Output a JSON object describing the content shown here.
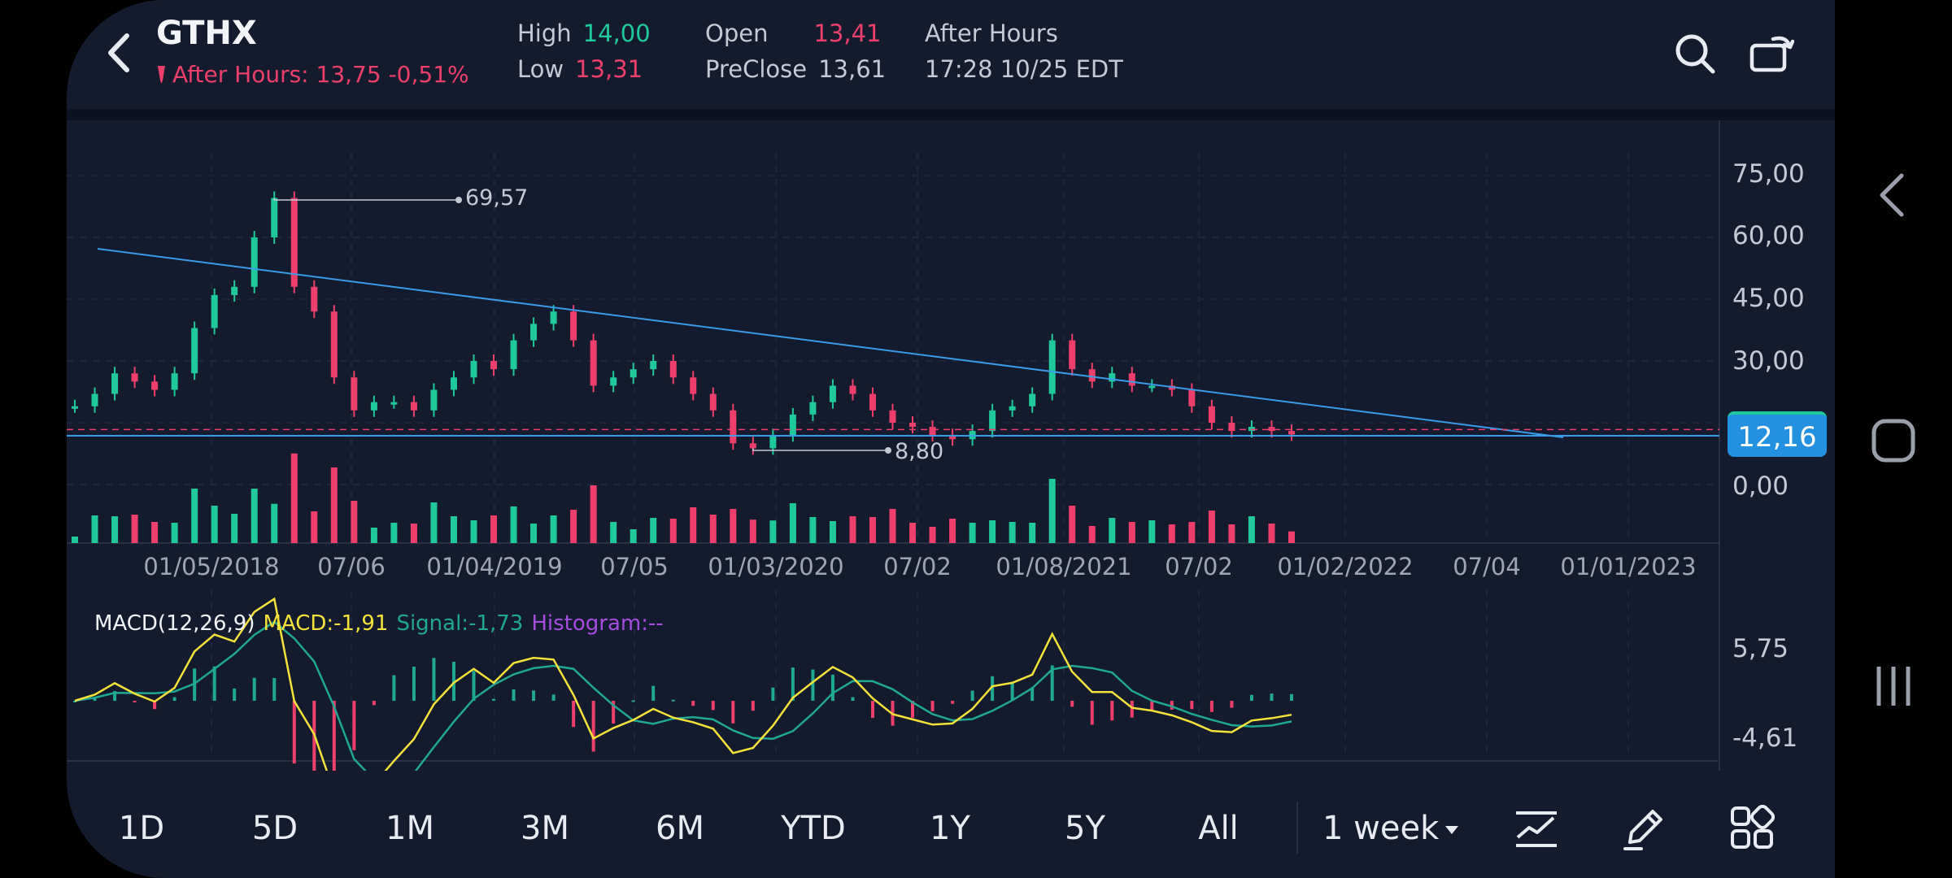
{
  "header": {
    "ticker": "GTHX",
    "after_hours_line": "After Hours: 13,75 -0,51%",
    "high_label": "High",
    "high_value": "14,00",
    "low_label": "Low",
    "low_value": "13,31",
    "open_label": "Open",
    "open_value": "13,41",
    "preclose_label": "PreClose",
    "preclose_value": "13,61",
    "session_label": "After Hours",
    "timestamp": "17:28 10/25 EDT"
  },
  "colors": {
    "up": "#1fc99c",
    "down": "#ee3f6c",
    "trendline": "#3a9be8",
    "macd": "#f5e23a",
    "signal": "#1fa892",
    "histogram": "#a64de0",
    "price_tag": "#2390e0"
  },
  "icons": {
    "back": "chevron-left-icon",
    "search": "search-icon",
    "rotate": "rotate-screen-icon",
    "indicator": "chart-indicator-icon",
    "draw": "pen-draw-icon",
    "more": "grid-apps-icon"
  },
  "chart": {
    "y_labels": [
      "75,00",
      "60,00",
      "45,00",
      "30,00",
      "0,00"
    ],
    "x_labels": [
      "01/05/2018",
      "07/06",
      "01/04/2019",
      "07/05",
      "01/03/2020",
      "07/02",
      "01/08/2021",
      "07/02",
      "01/02/2022",
      "07/04",
      "01/01/2023"
    ],
    "high_marker": "69,57",
    "low_marker": "8,80",
    "last_price": "12,16"
  },
  "macd": {
    "title": "MACD(12,26,9)",
    "macd_label": "MACD:-1,91",
    "signal_label": "Signal:-1,73",
    "histogram_label": "Histogram:--",
    "y_labels": [
      "5,75",
      "-4,61"
    ]
  },
  "chart_data": {
    "type": "line",
    "x_axis": [
      "01/05/2018",
      "07/06",
      "01/04/2019",
      "07/05",
      "01/03/2020",
      "07/02",
      "01/08/2021",
      "07/02",
      "01/02/2022",
      "07/04",
      "01/01/2023"
    ],
    "ylim": [
      0,
      75
    ],
    "series": [
      {
        "values": [
          19,
          22,
          27,
          25,
          23,
          27,
          38,
          46,
          48,
          60,
          69.57,
          48,
          42,
          26,
          18,
          20,
          20,
          18,
          23,
          26,
          30,
          28,
          35,
          39,
          42,
          35,
          24,
          26,
          28,
          30,
          26,
          22,
          18,
          10,
          8.8,
          12,
          17,
          20,
          24,
          22,
          18,
          15,
          14,
          12,
          11,
          13,
          18,
          19,
          22,
          35,
          28,
          25,
          27,
          24,
          24,
          23,
          19,
          15,
          13,
          14,
          13,
          12.16
        ]
      }
    ],
    "annotations": [
      "69,57",
      "8,80"
    ],
    "last_price": 12.16
  },
  "bottom_bar": {
    "timeframes": [
      "1D",
      "5D",
      "1M",
      "3M",
      "6M",
      "YTD",
      "1Y",
      "5Y",
      "All"
    ],
    "period": "1 week"
  }
}
